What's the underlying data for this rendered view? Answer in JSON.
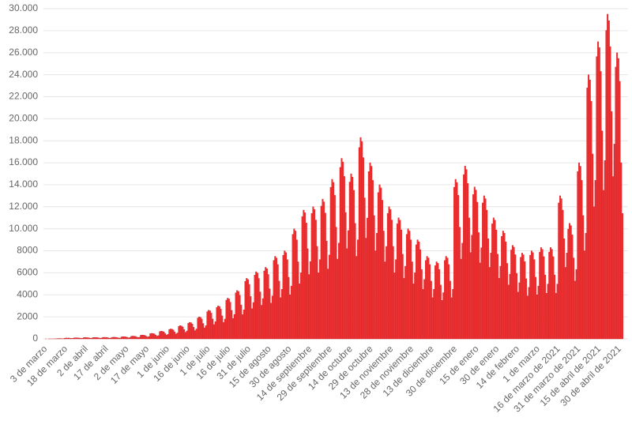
{
  "chart_data": {
    "type": "bar",
    "color": "#f03232",
    "grid": true,
    "ylim": [
      0,
      30000
    ],
    "yticks": [
      0,
      2000,
      4000,
      6000,
      8000,
      {
        "value": 10000,
        "label": "10.000"
      },
      {
        "value": 12000,
        "label": "12.000"
      },
      {
        "value": 14000,
        "label": "14.000"
      },
      {
        "value": 16000,
        "label": "16.000"
      },
      {
        "value": 18000,
        "label": "18.000"
      },
      {
        "value": 20000,
        "label": "20.000"
      },
      {
        "value": 22000,
        "label": "22.000"
      },
      {
        "value": 24000,
        "label": "24.000"
      },
      {
        "value": 26000,
        "label": "26.000"
      },
      {
        "value": 28000,
        "label": "28.000"
      },
      {
        "value": 30000,
        "label": "30.000"
      }
    ],
    "categories": [
      "3 de marzo",
      null,
      null,
      null,
      null,
      null,
      null,
      null,
      null,
      null,
      null,
      null,
      null,
      null,
      null,
      "18 de marzo",
      null,
      null,
      null,
      null,
      null,
      null,
      null,
      null,
      null,
      null,
      null,
      null,
      null,
      null,
      "2 de abril",
      null,
      null,
      null,
      null,
      null,
      null,
      null,
      null,
      null,
      null,
      null,
      null,
      null,
      null,
      "17 de abril",
      null,
      null,
      null,
      null,
      null,
      null,
      null,
      null,
      null,
      null,
      null,
      null,
      null,
      null,
      "2 de mayo",
      null,
      null,
      null,
      null,
      null,
      null,
      null,
      null,
      null,
      null,
      null,
      null,
      null,
      null,
      "17 de mayo",
      null,
      null,
      null,
      null,
      null,
      null,
      null,
      null,
      null,
      null,
      null,
      null,
      null,
      null,
      "1 de junio",
      null,
      null,
      null,
      null,
      null,
      null,
      null,
      null,
      null,
      null,
      null,
      null,
      null,
      null,
      "16 de junio",
      null,
      null,
      null,
      null,
      null,
      null,
      null,
      null,
      null,
      null,
      null,
      null,
      null,
      null,
      "1 de julio",
      null,
      null,
      null,
      null,
      null,
      null,
      null,
      null,
      null,
      null,
      null,
      null,
      null,
      null,
      "16 de julio",
      null,
      null,
      null,
      null,
      null,
      null,
      null,
      null,
      null,
      null,
      null,
      null,
      null,
      null,
      "31 de julio",
      null,
      null,
      null,
      null,
      null,
      null,
      null,
      null,
      null,
      null,
      null,
      null,
      null,
      null,
      "15 de agosto",
      null,
      null,
      null,
      null,
      null,
      null,
      null,
      null,
      null,
      null,
      null,
      null,
      null,
      null,
      "30 de agosto",
      null,
      null,
      null,
      null,
      null,
      null,
      null,
      null,
      null,
      null,
      null,
      null,
      null,
      null,
      "14 de septiembre",
      null,
      null,
      null,
      null,
      null,
      null,
      null,
      null,
      null,
      null,
      null,
      null,
      null,
      null,
      "29 de septiembre",
      null,
      null,
      null,
      null,
      null,
      null,
      null,
      null,
      null,
      null,
      null,
      null,
      null,
      null,
      "14 de octubre",
      null,
      null,
      null,
      null,
      null,
      null,
      null,
      null,
      null,
      null,
      null,
      null,
      null,
      null,
      "29 de octubre",
      null,
      null,
      null,
      null,
      null,
      null,
      null,
      null,
      null,
      null,
      null,
      null,
      null,
      null,
      "13 de noviembre",
      null,
      null,
      null,
      null,
      null,
      null,
      null,
      null,
      null,
      null,
      null,
      null,
      null,
      null,
      "28 de noviembre",
      null,
      null,
      null,
      null,
      null,
      null,
      null,
      null,
      null,
      null,
      null,
      null,
      null,
      null,
      "13 de diciembre",
      null,
      null,
      null,
      null,
      null,
      null,
      null,
      null,
      null,
      null,
      null,
      null,
      null,
      null,
      null,
      null,
      "30 de diciembre",
      null,
      null,
      null,
      null,
      null,
      null,
      null,
      null,
      null,
      null,
      null,
      null,
      null,
      null,
      null,
      "15 de enero",
      null,
      null,
      null,
      null,
      null,
      null,
      null,
      null,
      null,
      null,
      null,
      null,
      null,
      null,
      "30 de enero",
      null,
      null,
      null,
      null,
      null,
      null,
      null,
      null,
      null,
      null,
      null,
      null,
      null,
      null,
      "14 de febrero",
      null,
      null,
      null,
      null,
      null,
      null,
      null,
      null,
      null,
      null,
      null,
      null,
      null,
      null,
      "1 de marzo",
      null,
      null,
      null,
      null,
      null,
      null,
      null,
      null,
      null,
      null,
      null,
      null,
      null,
      null,
      "16 de marzo de 2021",
      null,
      null,
      null,
      null,
      null,
      null,
      null,
      null,
      null,
      null,
      null,
      null,
      null,
      null,
      "31 de marzo de 2021",
      null,
      null,
      null,
      null,
      null,
      null,
      null,
      null,
      null,
      null,
      null,
      null,
      null,
      null,
      "15 de abril de 2021",
      null,
      null,
      null,
      null,
      null,
      null,
      null,
      null,
      null,
      null,
      null,
      null,
      null,
      null,
      "30 de abril de 2021",
      null,
      null
    ],
    "values": [
      1,
      0,
      1,
      5,
      2,
      2,
      5,
      12,
      17,
      31,
      34,
      30,
      20,
      25,
      60,
      80,
      70,
      80,
      50,
      40,
      55,
      95,
      100,
      98,
      90,
      70,
      50,
      60,
      114,
      120,
      118,
      108,
      84,
      60,
      72,
      124,
      130,
      127,
      117,
      91,
      65,
      78,
      133,
      140,
      137,
      126,
      98,
      70,
      84,
      143,
      150,
      147,
      135,
      105,
      75,
      90,
      190,
      200,
      196,
      180,
      140,
      100,
      120,
      238,
      250,
      245,
      225,
      175,
      125,
      150,
      333,
      350,
      343,
      315,
      245,
      175,
      210,
      475,
      500,
      490,
      450,
      350,
      250,
      300,
      665,
      700,
      686,
      630,
      490,
      350,
      420,
      855,
      900,
      882,
      810,
      630,
      450,
      540,
      1140,
      1200,
      1176,
      1080,
      840,
      600,
      720,
      1425,
      1500,
      1470,
      1350,
      1050,
      750,
      900,
      1900,
      2000,
      1960,
      1800,
      1400,
      1000,
      1200,
      2470,
      2600,
      2548,
      2340,
      1820,
      1300,
      1560,
      2850,
      3000,
      2940,
      2700,
      2100,
      1500,
      1800,
      3515,
      3700,
      3626,
      3330,
      2590,
      1850,
      2220,
      4180,
      4400,
      4312,
      3960,
      3080,
      2200,
      2640,
      5225,
      5500,
      5390,
      4950,
      3850,
      2750,
      3300,
      5795,
      6100,
      5978,
      5490,
      4270,
      3050,
      3660,
      6175,
      6500,
      6370,
      5850,
      4550,
      3250,
      3900,
      7125,
      7500,
      7350,
      6750,
      5250,
      3750,
      4500,
      7600,
      8000,
      7840,
      7200,
      5600,
      4000,
      4800,
      9500,
      10000,
      9800,
      9000,
      7000,
      5000,
      6000,
      11115,
      11700,
      11466,
      10530,
      8190,
      5850,
      7020,
      11400,
      12000,
      11760,
      10800,
      8400,
      6000,
      7200,
      12065,
      12700,
      12446,
      11430,
      8890,
      6350,
      7620,
      13775,
      14500,
      14210,
      13050,
      10150,
      7250,
      8700,
      15580,
      16400,
      16072,
      14760,
      11480,
      8200,
      9840,
      14250,
      15000,
      14700,
      13500,
      10500,
      7500,
      9000,
      17385,
      18300,
      17934,
      16470,
      12810,
      9150,
      10980,
      15200,
      16000,
      15680,
      14400,
      11200,
      8000,
      9600,
      13300,
      14000,
      13720,
      12600,
      9800,
      7000,
      8400,
      11400,
      12000,
      11760,
      10800,
      8400,
      6000,
      7200,
      10450,
      11000,
      10780,
      9900,
      7700,
      5500,
      6600,
      9500,
      10000,
      9800,
      9000,
      7000,
      5000,
      6000,
      8550,
      9000,
      8820,
      8100,
      6300,
      4500,
      5400,
      7125,
      7500,
      7350,
      6750,
      5250,
      3750,
      4500,
      6650,
      7000,
      6860,
      6300,
      4900,
      3500,
      4200,
      7125,
      7500,
      7350,
      6750,
      5250,
      3750,
      4500,
      13775,
      14500,
      14210,
      13050,
      10150,
      7250,
      8700,
      14915,
      15700,
      15386,
      14130,
      10990,
      7850,
      9420,
      13110,
      13800,
      13524,
      12420,
      9660,
      6900,
      8280,
      12350,
      13000,
      12740,
      11700,
      9100,
      6500,
      7800,
      10450,
      11000,
      10780,
      9900,
      7700,
      5500,
      6600,
      9310,
      9800,
      9604,
      8820,
      6860,
      4900,
      5880,
      8075,
      8500,
      8330,
      7650,
      5950,
      4250,
      5100,
      7410,
      7800,
      7644,
      7020,
      5460,
      3900,
      4680,
      7600,
      8000,
      7840,
      7200,
      5600,
      4000,
      4800,
      7885,
      8300,
      8134,
      7470,
      5810,
      4150,
      4980,
      7885,
      8300,
      8134,
      7470,
      5810,
      4150,
      4980,
      12350,
      13000,
      12740,
      11700,
      9100,
      6500,
      7800,
      9975,
      10500,
      10290,
      9450,
      7350,
      5250,
      6300,
      15200,
      16000,
      15680,
      14400,
      11200,
      8000,
      9600,
      22800,
      24000,
      23520,
      21600,
      16800,
      12000,
      14400,
      25650,
      27000,
      26460,
      24300,
      18900,
      13500,
      16200,
      28025,
      29500,
      28910,
      26550,
      20650,
      14750,
      17700,
      24700,
      26000,
      25480,
      23400,
      16000,
      11400
    ]
  }
}
